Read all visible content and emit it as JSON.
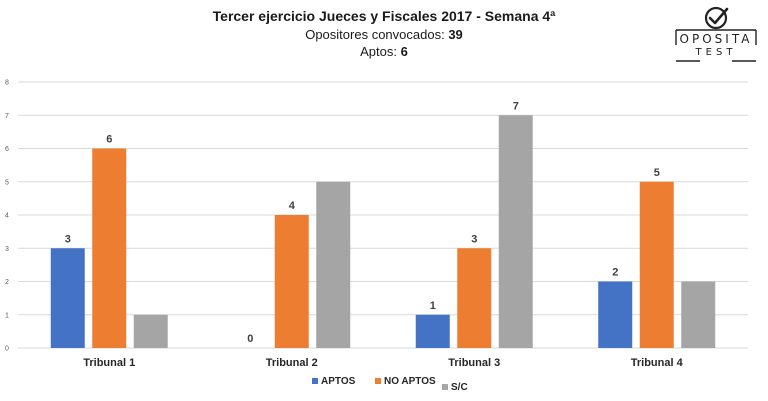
{
  "header": {
    "title": "Tercer ejercicio Jueces y Fiscales 2017 - Semana 4ª",
    "convocados_label": "Opositores convocados:",
    "convocados_value": "39",
    "aptos_label": "Aptos:",
    "aptos_value": "6"
  },
  "logo": {
    "line1": "OPOSITA",
    "line2": "TEST",
    "icon": "check-circle-icon"
  },
  "chart_data": {
    "type": "bar",
    "categories": [
      "Tribunal 1",
      "Tribunal 2",
      "Tribunal 3",
      "Tribunal 4"
    ],
    "series": [
      {
        "name": "APTOS",
        "color": "#4472C4",
        "values": [
          3,
          0,
          1,
          2
        ],
        "labels": [
          "3",
          "0",
          "1",
          "2"
        ]
      },
      {
        "name": "NO APTOS",
        "color": "#ED7D31",
        "values": [
          6,
          4,
          3,
          5
        ],
        "labels": [
          "6",
          "4",
          "3",
          "5"
        ]
      },
      {
        "name": "S/C",
        "color": "#A5A5A5",
        "values": [
          1,
          5,
          7,
          2
        ],
        "labels": [
          "",
          "",
          "7",
          ""
        ]
      }
    ],
    "ylim": [
      0,
      8
    ],
    "yticks": [
      0,
      1,
      2,
      3,
      4,
      5,
      6,
      7,
      8
    ],
    "grid": true,
    "legend": "bottom"
  }
}
